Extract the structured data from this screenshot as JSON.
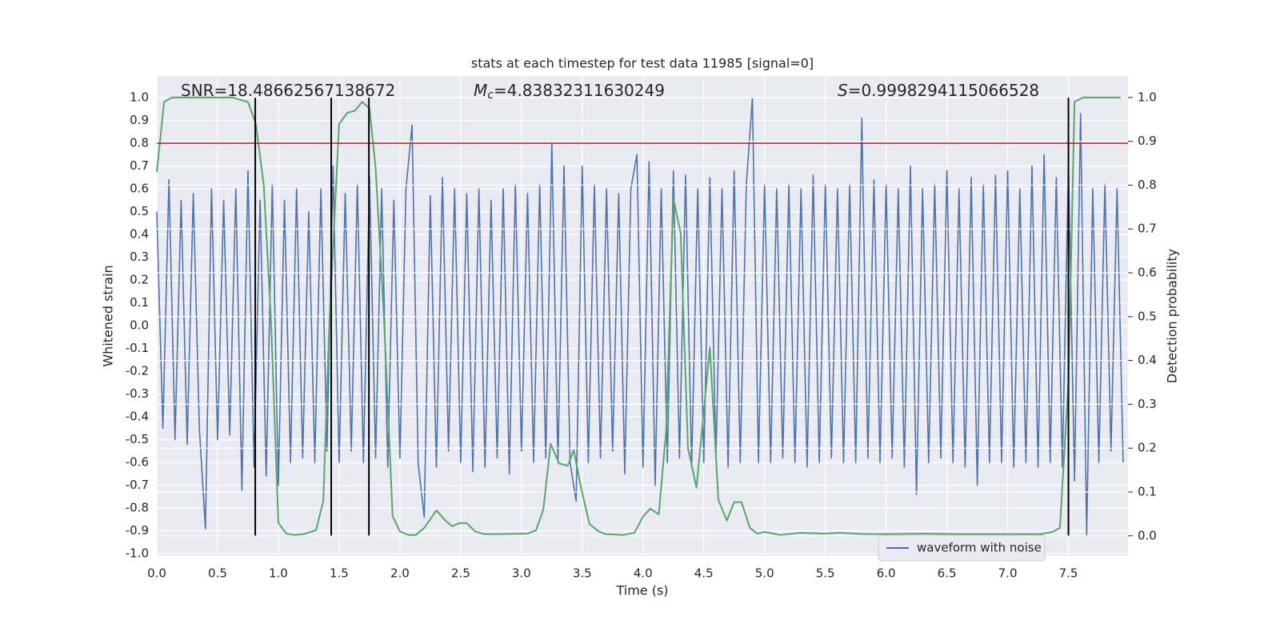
{
  "chart_data": {
    "type": "line",
    "title": "stats at each timestep for test data 11985 [signal=0]",
    "xlabel": "Time (s)",
    "ylabel": "Whitened strain",
    "y2label": "Detection probability",
    "annotations": {
      "snr": {
        "text": "SNR=18.48662567138672"
      },
      "mc": {
        "symbol": "M",
        "subscript": "c",
        "text": "=4.83832311630249"
      },
      "s": {
        "symbol": "S",
        "text": "=0.9998294115066528"
      }
    },
    "xlim": [
      0,
      7.99
    ],
    "ylim": [
      -1.01,
      1.095
    ],
    "y2lim": [
      -0.046,
      1.049
    ],
    "xticks": [
      {
        "value": 0,
        "label": "0.0"
      },
      0.5,
      {
        "value": 1,
        "label": "1.0"
      },
      1.5,
      {
        "value": 2,
        "label": "2.0"
      },
      2.5,
      {
        "value": 3,
        "label": "3.0"
      },
      3.5,
      {
        "value": 4,
        "label": "4.0"
      },
      4.5,
      {
        "value": 5,
        "label": "5.0"
      },
      5.5,
      {
        "value": 6,
        "label": "6.0"
      },
      6.5,
      {
        "value": 7,
        "label": "7.0"
      },
      7.5
    ],
    "yticks": [
      {
        "value": -1,
        "label": "-1.0"
      },
      -0.9,
      -0.8,
      -0.7,
      -0.6,
      -0.5,
      -0.4,
      -0.3,
      -0.2,
      -0.1,
      {
        "value": 0,
        "label": "0.0"
      },
      0.1,
      0.2,
      0.3,
      0.4,
      0.5,
      0.6,
      0.7,
      0.8,
      0.9,
      {
        "value": 1,
        "label": "1.0"
      }
    ],
    "y2ticks": [
      {
        "value": 0,
        "label": "0.0"
      },
      0.1,
      0.2,
      0.3,
      0.4,
      0.5,
      0.6,
      0.7,
      0.8,
      0.9,
      {
        "value": 1,
        "label": "1.0"
      }
    ],
    "grid": true,
    "legend": "lower right",
    "series": [
      {
        "name": "waveform with noise",
        "color": "#4c72b0",
        "x": [
          0,
          0.05,
          0.1,
          0.15,
          0.2,
          0.25,
          0.3,
          0.35,
          0.4,
          0.45,
          0.5,
          0.55,
          0.6,
          0.65,
          0.7,
          0.75,
          0.8,
          0.85,
          0.9,
          0.95,
          1,
          1.05,
          1.1,
          1.15,
          1.2,
          1.25,
          1.3,
          1.35,
          1.4,
          1.45,
          1.5,
          1.55,
          1.6,
          1.65,
          1.7,
          1.75,
          1.8,
          1.85,
          1.9,
          1.95,
          2,
          2.05,
          2.1,
          2.15,
          2.2,
          2.25,
          2.3,
          2.35,
          2.4,
          2.45,
          2.5,
          2.55,
          2.6,
          2.65,
          2.7,
          2.75,
          2.8,
          2.85,
          2.9,
          2.95,
          3,
          3.05,
          3.1,
          3.15,
          3.2,
          3.25,
          3.3,
          3.35,
          3.4,
          3.45,
          3.5,
          3.55,
          3.6,
          3.65,
          3.7,
          3.75,
          3.8,
          3.85,
          3.9,
          3.95,
          4,
          4.05,
          4.1,
          4.15,
          4.2,
          4.25,
          4.3,
          4.35,
          4.4,
          4.45,
          4.5,
          4.55,
          4.6,
          4.65,
          4.7,
          4.75,
          4.8,
          4.85,
          4.9,
          4.95,
          5,
          5.05,
          5.1,
          5.15,
          5.2,
          5.25,
          5.3,
          5.35,
          5.4,
          5.45,
          5.5,
          5.55,
          5.6,
          5.65,
          5.7,
          5.75,
          5.8,
          5.85,
          5.9,
          5.95,
          6,
          6.05,
          6.1,
          6.15,
          6.2,
          6.25,
          6.3,
          6.35,
          6.4,
          6.45,
          6.5,
          6.55,
          6.6,
          6.65,
          6.7,
          6.75,
          6.8,
          6.85,
          6.9,
          6.95,
          7,
          7.05,
          7.1,
          7.15,
          7.2,
          7.25,
          7.3,
          7.35,
          7.4,
          7.45,
          7.5,
          7.55,
          7.6,
          7.65,
          7.7,
          7.75,
          7.8,
          7.85,
          7.9,
          7.95
        ],
        "values": [
          0.5,
          -0.45,
          0.64,
          -0.5,
          0.55,
          -0.52,
          0.58,
          -0.45,
          -0.89,
          0.6,
          -0.5,
          0.55,
          -0.48,
          0.6,
          -0.72,
          0.68,
          -0.62,
          0.55,
          -0.66,
          0.62,
          -0.7,
          0.55,
          -0.6,
          0.6,
          -0.58,
          0.5,
          -0.6,
          0.6,
          -0.55,
          0.7,
          -0.6,
          0.58,
          -0.55,
          0.62,
          -0.6,
          0.65,
          -0.58,
          0.6,
          -0.62,
          0.55,
          -0.58,
          0.6,
          0.88,
          -0.6,
          -0.84,
          0.57,
          -0.62,
          0.65,
          -0.55,
          0.6,
          -0.6,
          0.58,
          -0.64,
          0.6,
          -0.62,
          0.55,
          -0.58,
          0.6,
          -0.65,
          0.62,
          -0.55,
          0.58,
          -0.6,
          0.62,
          -0.58,
          0.8,
          -0.6,
          0.7,
          -0.6,
          -0.77,
          0.7,
          -0.6,
          0.62,
          -0.58,
          0.6,
          -0.55,
          0.58,
          -0.65,
          0.6,
          0.75,
          -0.62,
          0.72,
          -0.7,
          0.6,
          -0.6,
          0.68,
          -0.58,
          0.66,
          -0.62,
          0.6,
          -0.6,
          0.65,
          -0.58,
          0.6,
          -0.62,
          0.68,
          -0.6,
          0.62,
          1.0,
          -0.6,
          0.62,
          -0.6,
          0.6,
          -0.58,
          0.62,
          -0.6,
          0.6,
          -0.62,
          0.66,
          -0.6,
          0.62,
          -0.58,
          0.6,
          -0.6,
          0.62,
          -0.6,
          0.91,
          -0.58,
          0.64,
          -0.6,
          0.62,
          -0.58,
          0.6,
          -0.62,
          0.7,
          -0.74,
          0.6,
          -0.6,
          0.62,
          -0.58,
          0.68,
          -0.6,
          0.6,
          -0.62,
          0.65,
          -0.7,
          0.62,
          -0.6,
          0.66,
          -0.6,
          0.68,
          -0.62,
          0.6,
          -0.6,
          0.7,
          -0.62,
          0.75,
          -0.6,
          0.65,
          -0.62,
          0.7,
          -0.68,
          0.93,
          -0.92,
          0.6,
          -0.6,
          0.62,
          -0.55,
          0.6,
          -0.6
        ]
      },
      {
        "color": "#55a868",
        "axis": "y2",
        "x": [
          0,
          0.06,
          0.125,
          0.62,
          0.68,
          0.75,
          0.815,
          0.88,
          0.94,
          1,
          1.065,
          1.13,
          1.21,
          1.31,
          1.37,
          1.42,
          1.5,
          1.567,
          1.63,
          1.69,
          1.75,
          1.8,
          1.87,
          1.94,
          2,
          2.07,
          2.13,
          2.2,
          2.3,
          2.37,
          2.43,
          2.49,
          2.55,
          2.62,
          2.69,
          2.82,
          3.05,
          3.12,
          3.18,
          3.24,
          3.31,
          3.38,
          3.43,
          3.49,
          3.56,
          3.63,
          3.69,
          3.84,
          3.93,
          4,
          4.06,
          4.13,
          4.19,
          4.25,
          4.31,
          4.37,
          4.44,
          4.55,
          4.62,
          4.69,
          4.75,
          4.81,
          4.88,
          4.94,
          5,
          5.13,
          5.29,
          5.49,
          5.62,
          5.82,
          5.95,
          6.28,
          6.61,
          7,
          7.27,
          7.37,
          7.43,
          7.5,
          7.55,
          7.62,
          7.93
        ],
        "values": [
          0.83,
          0.99,
          1,
          1,
          0.995,
          0.99,
          0.94,
          0.8,
          0.49,
          0.03,
          0.005,
          0.002,
          0.004,
          0.013,
          0.08,
          0.49,
          0.94,
          0.965,
          0.97,
          0.99,
          0.975,
          0.84,
          0.49,
          0.045,
          0.01,
          0.002,
          0.002,
          0.018,
          0.058,
          0.036,
          0.022,
          0.029,
          0.029,
          0.01,
          0.004,
          0.004,
          0.005,
          0.013,
          0.06,
          0.21,
          0.165,
          0.16,
          0.195,
          0.11,
          0.027,
          0.011,
          0.004,
          0.002,
          0.007,
          0.044,
          0.062,
          0.049,
          0.24,
          0.77,
          0.69,
          0.2,
          0.11,
          0.43,
          0.082,
          0.035,
          0.077,
          0.077,
          0.018,
          0.005,
          0.009,
          0.002,
          0.007,
          0.005,
          0.007,
          0.004,
          0.004,
          0.005,
          0.004,
          0.004,
          0.004,
          0.009,
          0.018,
          0.35,
          0.99,
          1,
          1
        ]
      }
    ],
    "hline": {
      "y": 0.8,
      "color": "#b8312f"
    },
    "vlines": {
      "x": [
        0.81,
        1.435,
        1.745,
        7.5
      ],
      "ymin": -0.92,
      "ymax": 1.0,
      "color": "#000000"
    }
  }
}
